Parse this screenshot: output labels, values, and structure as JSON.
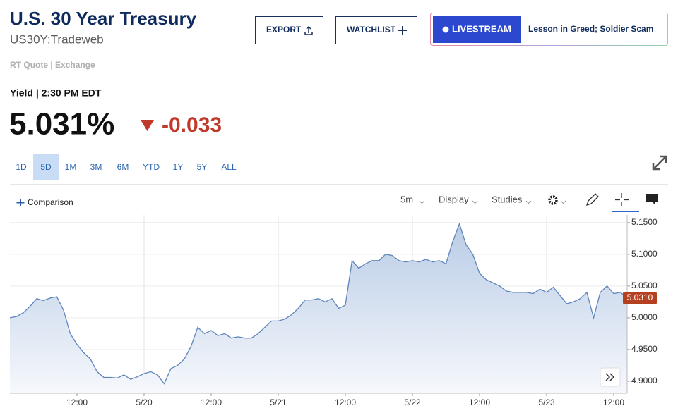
{
  "header": {
    "title": "U.S. 30 Year Treasury",
    "symbol": "US30Y:Tradeweb",
    "quote_source": "RT Quote | Exchange"
  },
  "buttons": {
    "export": "EXPORT",
    "watchlist": "WATCHLIST",
    "livestream": "LIVESTREAM",
    "headline": "Lesson in Greed; Soldier Scam"
  },
  "quote": {
    "label": "Yield | 2:30 PM EDT",
    "price": "5.031%",
    "change": "-0.033"
  },
  "ranges": [
    "1D",
    "5D",
    "1M",
    "3M",
    "6M",
    "YTD",
    "1Y",
    "5Y",
    "ALL"
  ],
  "active_range_index": 1,
  "toolbar": {
    "comparison": "Comparison",
    "interval": "5m",
    "display": "Display",
    "studies": "Studies"
  },
  "chart_data": {
    "type": "area",
    "categories": [
      null,
      null,
      null,
      null,
      null,
      null,
      null,
      null,
      null,
      null,
      "12:00",
      null,
      null,
      null,
      null,
      null,
      null,
      null,
      null,
      null,
      "5/20",
      null,
      null,
      null,
      null,
      null,
      null,
      null,
      null,
      null,
      "12:00",
      null,
      null,
      null,
      null,
      null,
      null,
      null,
      null,
      null,
      "5/21",
      null,
      null,
      null,
      null,
      null,
      null,
      null,
      null,
      null,
      "12:00",
      null,
      null,
      null,
      null,
      null,
      null,
      null,
      null,
      null,
      "5/22",
      null,
      null,
      null,
      null,
      null,
      null,
      null,
      null,
      null,
      "12:00",
      null,
      null,
      null,
      null,
      null,
      null,
      null,
      null,
      null,
      "5/23",
      null,
      null,
      null,
      null,
      null,
      null,
      null,
      null,
      null,
      "12:00",
      null,
      null
    ],
    "values": [
      5.0,
      5.002,
      5.008,
      5.018,
      5.03,
      5.027,
      5.031,
      5.033,
      5.012,
      4.975,
      4.958,
      4.945,
      4.935,
      4.915,
      4.906,
      4.906,
      4.905,
      4.91,
      4.903,
      4.907,
      4.912,
      4.915,
      4.91,
      4.896,
      4.92,
      4.925,
      4.935,
      4.955,
      4.985,
      4.975,
      4.98,
      4.972,
      4.975,
      4.968,
      4.97,
      4.968,
      4.968,
      4.975,
      4.985,
      4.995,
      4.995,
      4.998,
      5.005,
      5.015,
      5.028,
      5.028,
      5.03,
      5.025,
      5.03,
      5.015,
      5.02,
      5.09,
      5.078,
      5.085,
      5.09,
      5.09,
      5.1,
      5.098,
      5.09,
      5.088,
      5.09,
      5.088,
      5.092,
      5.088,
      5.09,
      5.085,
      5.12,
      5.148,
      5.115,
      5.1,
      5.07,
      5.06,
      5.055,
      5.05,
      5.042,
      5.04,
      5.04,
      5.04,
      5.038,
      5.045,
      5.04,
      5.048,
      5.035,
      5.022,
      5.025,
      5.03,
      5.04,
      5.0,
      5.04,
      5.05,
      5.038,
      5.04,
      5.031
    ],
    "color": "#5f84bb",
    "ylim": [
      4.881,
      5.162
    ],
    "yticks": [
      {
        "value": 4.9,
        "label": "4.9000"
      },
      {
        "value": 4.95,
        "label": "4.9500"
      },
      {
        "value": 5.0,
        "label": "5.0000"
      },
      {
        "value": 5.05,
        "label": "5.0500"
      },
      {
        "value": 5.1,
        "label": "5.1000"
      },
      {
        "value": 5.15,
        "label": "5.1500"
      }
    ],
    "grid": true,
    "last_price": {
      "value": 5.031,
      "label": "5.0310"
    }
  }
}
